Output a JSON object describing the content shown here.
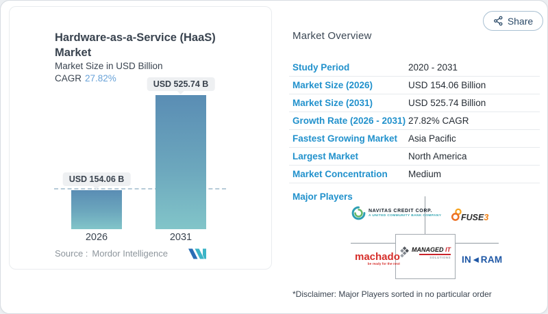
{
  "chart_card": {
    "title_line1": "Hardware-as-a-Service (HaaS)",
    "title_line2": "Market",
    "subtitle": "Market Size in USD Billion",
    "cagr_label": "CAGR",
    "cagr_value": "27.82%",
    "source_label": "Source :",
    "source_value": "Mordor Intelligence"
  },
  "chart_data": {
    "type": "bar",
    "title": "Hardware-as-a-Service (HaaS) Market",
    "ylabel": "Market Size in USD Billion",
    "xlabel": "",
    "categories": [
      "2026",
      "2031"
    ],
    "values": [
      154.06,
      525.74
    ],
    "value_labels": [
      "USD 154.06 B",
      "USD 525.74 B"
    ],
    "ylim": [
      0,
      560
    ],
    "reference_line_y": 154.06,
    "reference_line_style": "dashed",
    "cagr": "27.82%",
    "bar_color_top": "#5a8db4",
    "bar_color_bottom": "#82c5c9",
    "grid": false,
    "legend": false
  },
  "overview": {
    "heading": "Market Overview",
    "share_label": "Share",
    "rows": [
      {
        "label": "Study Period",
        "value": "2020 - 2031"
      },
      {
        "label": "Market Size (2026)",
        "value": "USD 154.06 Billion"
      },
      {
        "label": "Market Size (2031)",
        "value": "USD 525.74 Billion"
      },
      {
        "label": "Growth Rate (2026 - 2031)",
        "value": "27.82% CAGR"
      },
      {
        "label": "Fastest Growing Market",
        "value": "Asia Pacific"
      },
      {
        "label": "Largest Market",
        "value": "North America"
      },
      {
        "label": "Market Concentration",
        "value": "Medium"
      }
    ],
    "major_players_label": "Major Players",
    "players": {
      "navitas": {
        "name": "NAVITAS CREDIT CORP.",
        "tagline": "A UNITED COMMUNITY BANK COMPANY"
      },
      "fuse3": {
        "name_main": "FUSE",
        "name_suffix": "3"
      },
      "machado": {
        "name": "machado",
        "tagline": "be ready for the next"
      },
      "managed_it": {
        "name_main": "MANAGED ",
        "name_accent": "IT",
        "tagline": "SOLUTIONS"
      },
      "ingram": {
        "name_left": "IN",
        "name_mid": "◄",
        "name_right": "RAM"
      }
    },
    "disclaimer": "*Disclaimer: Major Players sorted in no particular order"
  },
  "colors": {
    "label_blue": "#2191cc",
    "cagr_blue": "#68a2d8",
    "bar_top": "#5a8db4",
    "bar_bottom": "#82c5c9",
    "share_text": "#2b4a68"
  }
}
